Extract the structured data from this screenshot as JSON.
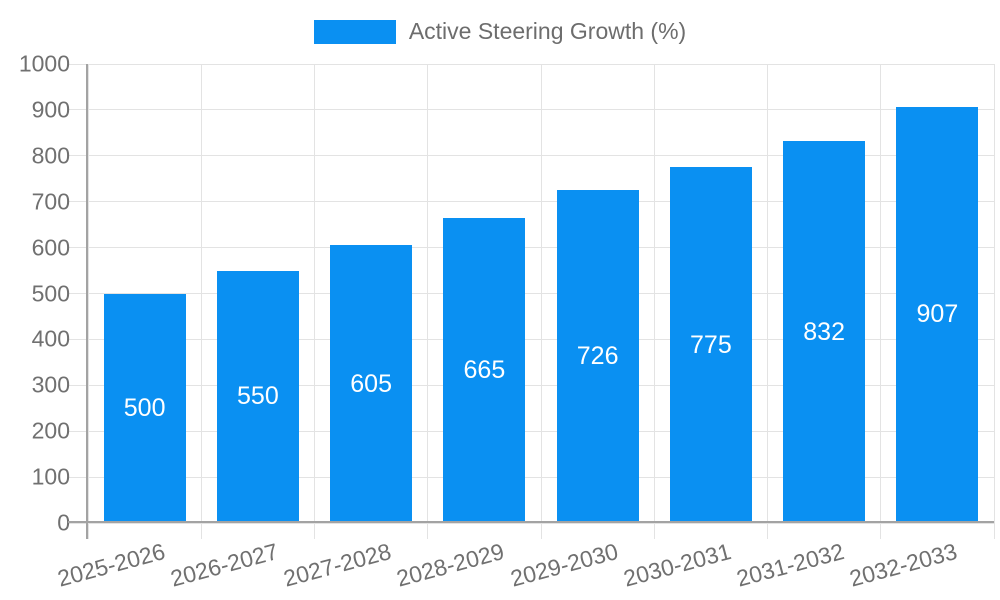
{
  "legend": {
    "label": "Active Steering Growth (%)"
  },
  "colors": {
    "bar": "#0a90f2",
    "grid": "#e3e3e3",
    "axis": "#a3a3a3",
    "tick_text": "#707070",
    "legend_text": "#6d6d6d",
    "bar_label_text": "#ffffff",
    "background": "#ffffff"
  },
  "chart_data": {
    "type": "bar",
    "title": "Active Steering Growth (%)",
    "series_name": "Active Steering Growth (%)",
    "categories": [
      "2025-2026",
      "2026-2027",
      "2027-2028",
      "2028-2029",
      "2029-2030",
      "2030-2031",
      "2031-2032",
      "2032-2033"
    ],
    "values": [
      500,
      550,
      605,
      665,
      726,
      775,
      832,
      907
    ],
    "xlabel": "",
    "ylabel": "",
    "ylim": [
      0,
      1000
    ],
    "ytick_step": 100,
    "yticks": [
      0,
      100,
      200,
      300,
      400,
      500,
      600,
      700,
      800,
      900,
      1000
    ],
    "grid": true,
    "legend_position": "top-center",
    "bar_value_labels": "inside-center",
    "x_label_rotation_deg": -15
  }
}
